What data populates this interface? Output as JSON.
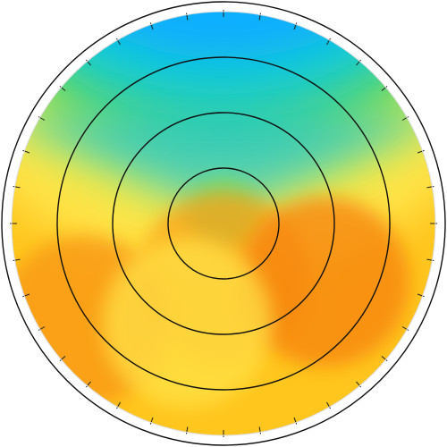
{
  "chart_data": {
    "type": "heatmap",
    "projection": "polar-disc",
    "title": "",
    "colorscale": [
      "#1e90ff",
      "#00c8ff",
      "#3cd28c",
      "#c8e632",
      "#fff05a",
      "#ffc81e",
      "#fa9f14",
      "#f05a0a"
    ],
    "rings": [
      1,
      2,
      3,
      4
    ],
    "ticks_per_circle": 36,
    "grid": true,
    "fields": [
      {
        "name": "top-cold-band",
        "shape": "wedge",
        "level": 0.12,
        "center_deg": 90,
        "width_deg": 130
      },
      {
        "name": "center-dip",
        "shape": "spot",
        "level": 0.35,
        "angle_deg": 90,
        "r": 0.05
      },
      {
        "name": "inner-warm",
        "shape": "spot",
        "level": 0.85,
        "angle_deg": 270,
        "r": 0.25
      },
      {
        "name": "right-hot",
        "shape": "spot",
        "level": 0.92,
        "angle_deg": 330,
        "r": 0.55
      },
      {
        "name": "left-hot",
        "shape": "spot",
        "level": 0.88,
        "angle_deg": 215,
        "r": 0.8
      },
      {
        "name": "lower-left-mild",
        "shape": "spot",
        "level": 0.62,
        "angle_deg": 250,
        "r": 0.5
      }
    ]
  }
}
